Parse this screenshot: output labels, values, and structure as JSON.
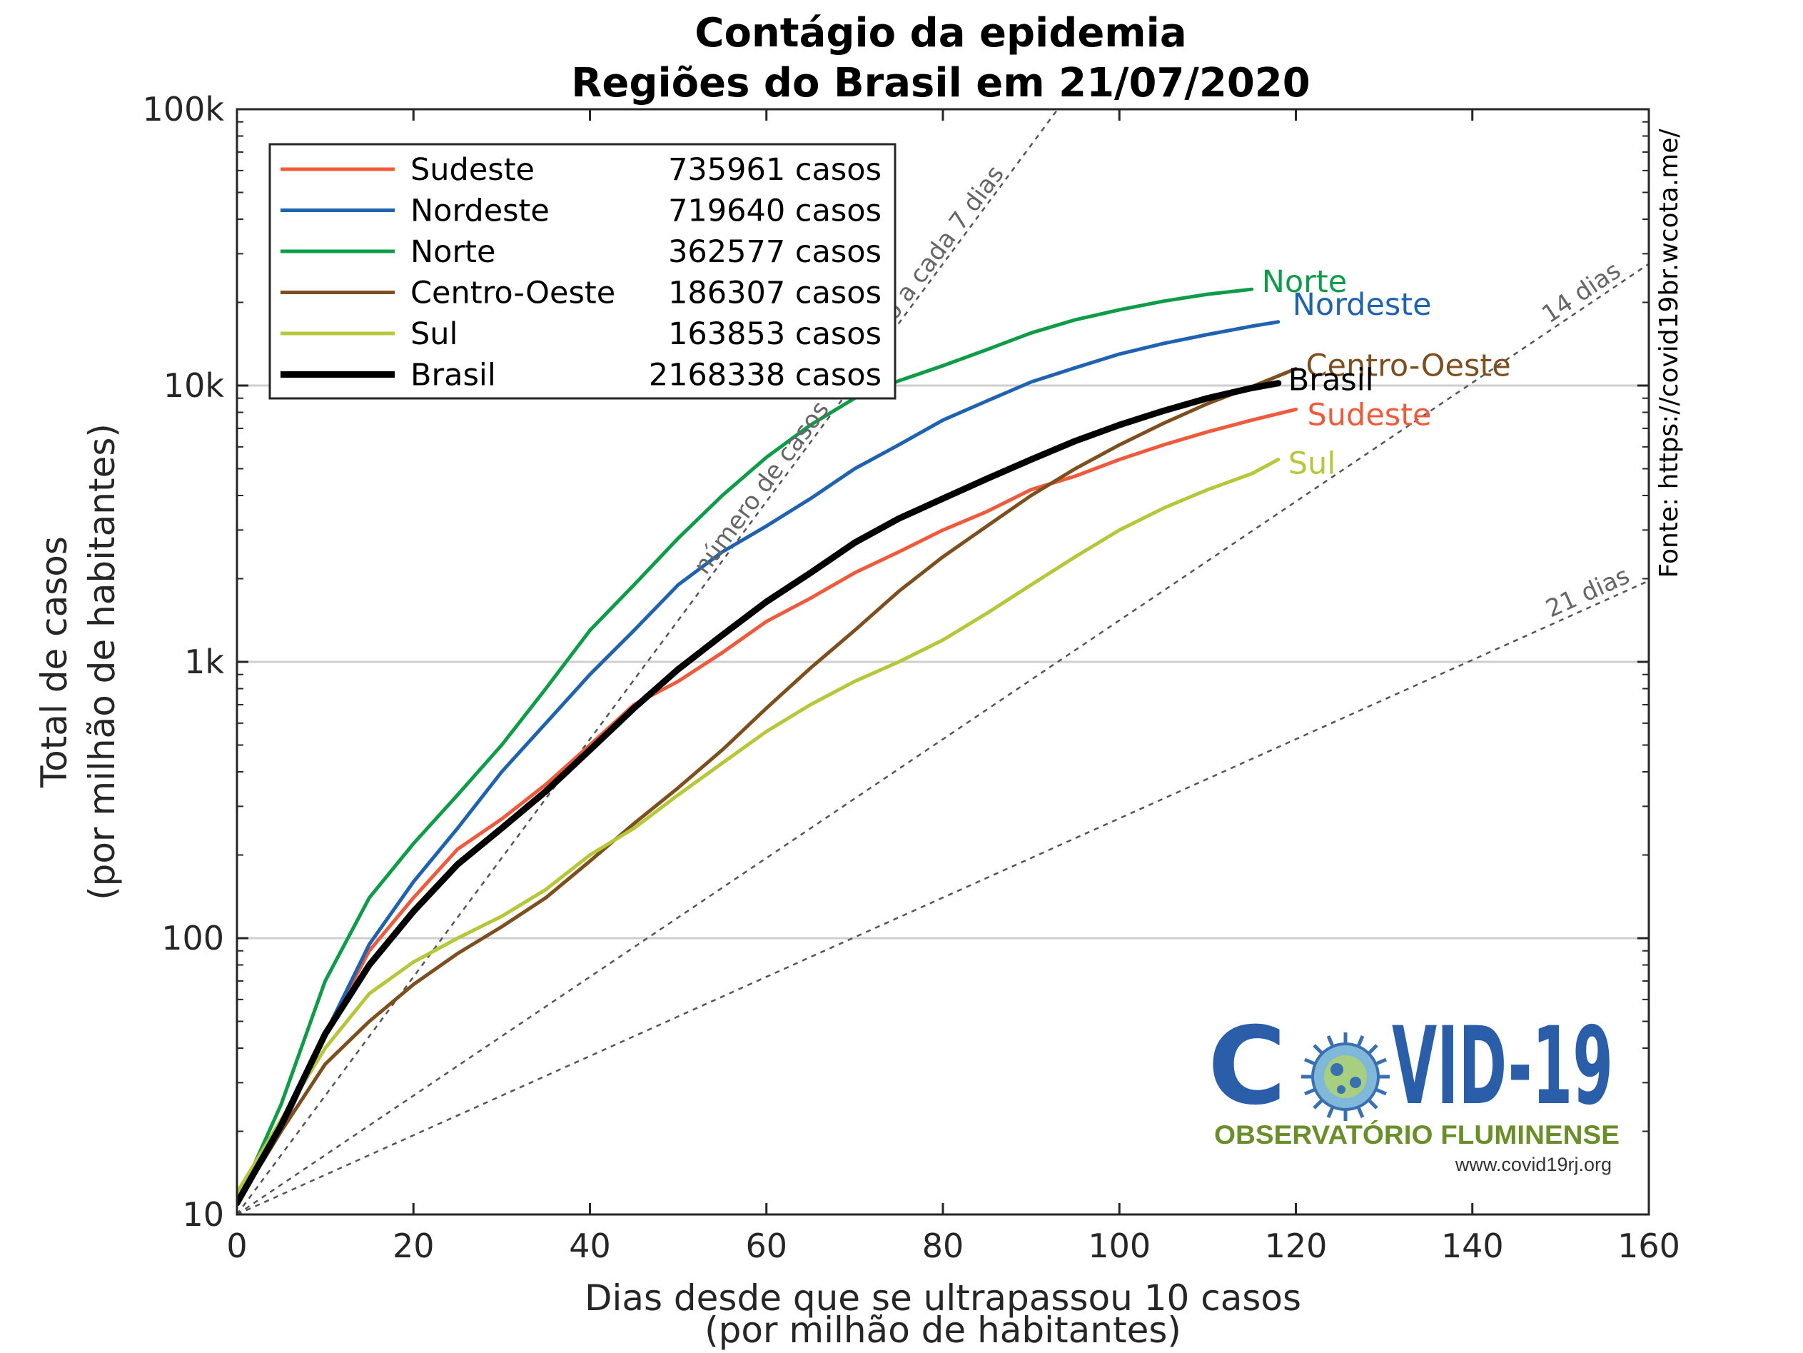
{
  "chart_data": {
    "type": "line",
    "title": "Contágio da epidemia",
    "subtitle": "Regiões do Brasil em 21/07/2020",
    "xlabel": "Dias desde que se ultrapassou 10 casos",
    "xlabel2": "(por milhão de habitantes)",
    "ylabel": "Total de casos",
    "ylabel2": "(por milhão de habitantes)",
    "xlim": [
      0,
      160
    ],
    "ylim": [
      10,
      100000
    ],
    "yscale": "log",
    "xticks": [
      0,
      20,
      40,
      60,
      80,
      100,
      120,
      140,
      160
    ],
    "xtick_labels": [
      "0",
      "20",
      "40",
      "60",
      "80",
      "100",
      "120",
      "140",
      "160"
    ],
    "yticks": [
      10,
      100,
      1000,
      10000,
      100000
    ],
    "ytick_labels": [
      "10",
      "100",
      "1k",
      "10k",
      "100k"
    ],
    "grid": "horizontal",
    "legend_position": "top-left",
    "source_text": "Fonte: https://covid19br.wcota.me/",
    "series": [
      {
        "name": "Sudeste",
        "legend_value": "735961 casos",
        "color": "#f05a3c",
        "width": 5,
        "x": [
          0,
          5,
          10,
          15,
          20,
          25,
          30,
          35,
          40,
          45,
          50,
          55,
          60,
          65,
          70,
          75,
          80,
          85,
          90,
          95,
          100,
          105,
          110,
          115,
          120
        ],
        "y": [
          11,
          20,
          45,
          90,
          140,
          210,
          270,
          360,
          500,
          700,
          850,
          1080,
          1400,
          1700,
          2100,
          2500,
          3000,
          3500,
          4200,
          4700,
          5400,
          6100,
          6800,
          7500,
          8200
        ]
      },
      {
        "name": "Nordeste",
        "legend_value": "719640 casos",
        "color": "#1f63b0",
        "width": 5,
        "x": [
          0,
          5,
          10,
          15,
          20,
          25,
          30,
          35,
          40,
          45,
          50,
          55,
          60,
          65,
          70,
          75,
          80,
          85,
          90,
          95,
          100,
          105,
          110,
          115,
          118
        ],
        "y": [
          11,
          20,
          45,
          95,
          160,
          250,
          400,
          600,
          900,
          1300,
          1900,
          2500,
          3100,
          3900,
          5000,
          6100,
          7500,
          8800,
          10300,
          11600,
          13000,
          14200,
          15300,
          16400,
          17000
        ]
      },
      {
        "name": "Norte",
        "legend_value": "362577 casos",
        "color": "#0e9c48",
        "width": 5,
        "x": [
          0,
          5,
          10,
          15,
          20,
          25,
          30,
          35,
          40,
          45,
          50,
          55,
          60,
          65,
          70,
          75,
          80,
          85,
          90,
          95,
          100,
          105,
          110,
          115
        ],
        "y": [
          11,
          25,
          70,
          140,
          220,
          330,
          500,
          800,
          1300,
          1900,
          2800,
          4000,
          5500,
          7200,
          9000,
          10400,
          11800,
          13500,
          15500,
          17300,
          18800,
          20200,
          21400,
          22300
        ]
      },
      {
        "name": "Centro-Oeste",
        "legend_value": "186307 casos",
        "color": "#7d4f1e",
        "width": 5,
        "x": [
          0,
          5,
          10,
          15,
          20,
          25,
          30,
          35,
          40,
          45,
          50,
          55,
          60,
          65,
          70,
          75,
          80,
          85,
          90,
          95,
          100,
          105,
          110,
          115,
          120
        ],
        "y": [
          11,
          20,
          35,
          50,
          68,
          88,
          110,
          140,
          190,
          260,
          350,
          480,
          680,
          950,
          1300,
          1800,
          2400,
          3100,
          4000,
          5000,
          6100,
          7300,
          8600,
          9900,
          11500
        ]
      },
      {
        "name": "Sul",
        "legend_value": "163853 casos",
        "color": "#b8c63a",
        "width": 5,
        "x": [
          0,
          5,
          10,
          15,
          20,
          25,
          30,
          35,
          40,
          45,
          50,
          55,
          60,
          65,
          70,
          75,
          80,
          85,
          90,
          95,
          100,
          105,
          110,
          115,
          118
        ],
        "y": [
          12,
          22,
          40,
          63,
          82,
          100,
          120,
          150,
          200,
          250,
          330,
          430,
          560,
          700,
          850,
          1000,
          1200,
          1500,
          1900,
          2400,
          3000,
          3600,
          4200,
          4800,
          5400
        ]
      },
      {
        "name": "Brasil",
        "legend_value": "2168338 casos",
        "color": "#000000",
        "width": 9,
        "x": [
          0,
          5,
          10,
          15,
          20,
          25,
          30,
          35,
          40,
          45,
          50,
          55,
          60,
          65,
          70,
          75,
          80,
          85,
          90,
          95,
          100,
          105,
          110,
          115,
          118
        ],
        "y": [
          11,
          21,
          45,
          80,
          125,
          185,
          250,
          340,
          480,
          680,
          940,
          1250,
          1650,
          2100,
          2700,
          3300,
          3900,
          4600,
          5400,
          6300,
          7200,
          8100,
          9000,
          9800,
          10200
        ]
      }
    ],
    "reference_lines": [
      {
        "label": "número de casos dobrando a cada 7 dias",
        "label_visible": "número de casos dobrando a cada 7 dias",
        "doubling_days": 7
      },
      {
        "label": "14 dias",
        "doubling_days": 14
      },
      {
        "label": "21 dias",
        "doubling_days": 21
      }
    ]
  },
  "logo": {
    "title": "COVID-19",
    "subtitle": "OBSERVATÓRIO FLUMINENSE",
    "url": "www.covid19rj.org"
  }
}
